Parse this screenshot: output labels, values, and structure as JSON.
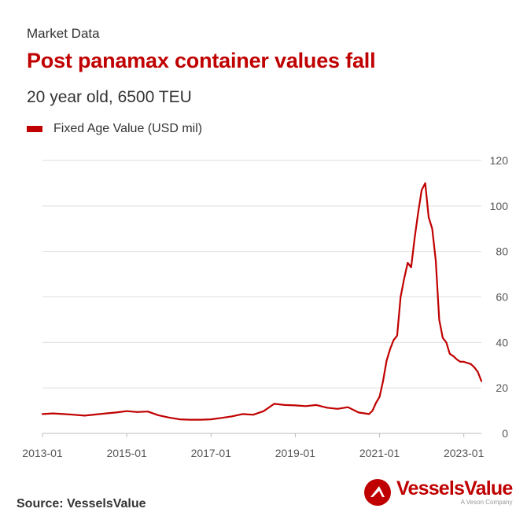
{
  "header": {
    "kicker": "Market Data",
    "title": "Post panamax container values fall",
    "subtitle": "20 year old, 6500 TEU"
  },
  "legend": {
    "label": "Fixed Age Value (USD mil)",
    "color": "#c00000"
  },
  "footer": {
    "source": "Source: VesselsValue",
    "logo_name": "VesselsValue",
    "logo_tag": "A Veson Company"
  },
  "chart_data": {
    "type": "line",
    "title": "Post panamax container values fall",
    "subtitle": "20 year old, 6500 TEU",
    "xlabel": "",
    "ylabel": "",
    "y_axis_side": "right",
    "ylim": [
      0,
      120
    ],
    "yticks": [
      0,
      20,
      40,
      60,
      80,
      100,
      120
    ],
    "xlim": [
      "2013-01",
      "2023-06"
    ],
    "xticks": [
      "2013-01",
      "2015-01",
      "2017-01",
      "2019-01",
      "2021-01",
      "2023-01"
    ],
    "grid": true,
    "legend_position": "top-left",
    "series": [
      {
        "name": "Fixed Age Value (USD mil)",
        "color": "#c00000",
        "points": [
          [
            "2013-01",
            8.5
          ],
          [
            "2013-04",
            8.8
          ],
          [
            "2013-07",
            8.5
          ],
          [
            "2013-10",
            8.2
          ],
          [
            "2014-01",
            7.8
          ],
          [
            "2014-04",
            8.3
          ],
          [
            "2014-07",
            8.8
          ],
          [
            "2014-10",
            9.2
          ],
          [
            "2015-01",
            9.8
          ],
          [
            "2015-04",
            9.4
          ],
          [
            "2015-07",
            9.6
          ],
          [
            "2015-10",
            8.0
          ],
          [
            "2016-01",
            7.0
          ],
          [
            "2016-04",
            6.2
          ],
          [
            "2016-07",
            6.0
          ],
          [
            "2016-10",
            6.0
          ],
          [
            "2017-01",
            6.2
          ],
          [
            "2017-04",
            6.8
          ],
          [
            "2017-07",
            7.5
          ],
          [
            "2017-10",
            8.5
          ],
          [
            "2018-01",
            8.2
          ],
          [
            "2018-04",
            9.8
          ],
          [
            "2018-07",
            13.0
          ],
          [
            "2018-10",
            12.5
          ],
          [
            "2019-01",
            12.3
          ],
          [
            "2019-04",
            12.0
          ],
          [
            "2019-07",
            12.5
          ],
          [
            "2019-10",
            11.3
          ],
          [
            "2020-01",
            10.8
          ],
          [
            "2020-04",
            11.5
          ],
          [
            "2020-07",
            9.2
          ],
          [
            "2020-10",
            8.5
          ],
          [
            "2020-11",
            10.0
          ],
          [
            "2020-12",
            13.5
          ],
          [
            "2021-01",
            16.0
          ],
          [
            "2021-02",
            23.0
          ],
          [
            "2021-03",
            32.0
          ],
          [
            "2021-04",
            37.0
          ],
          [
            "2021-05",
            41.0
          ],
          [
            "2021-06",
            43.0
          ],
          [
            "2021-07",
            60.0
          ],
          [
            "2021-08",
            68.0
          ],
          [
            "2021-09",
            75.0
          ],
          [
            "2021-10",
            73.0
          ],
          [
            "2021-11",
            86.0
          ],
          [
            "2021-12",
            97.0
          ],
          [
            "2022-01",
            107.0
          ],
          [
            "2022-02",
            110.0
          ],
          [
            "2022-03",
            95.0
          ],
          [
            "2022-04",
            90.0
          ],
          [
            "2022-05",
            76.0
          ],
          [
            "2022-06",
            50.0
          ],
          [
            "2022-07",
            42.0
          ],
          [
            "2022-08",
            40.0
          ],
          [
            "2022-09",
            35.0
          ],
          [
            "2022-10",
            34.0
          ],
          [
            "2022-11",
            32.5
          ],
          [
            "2022-12",
            31.5
          ],
          [
            "2023-01",
            31.5
          ],
          [
            "2023-02",
            31.0
          ],
          [
            "2023-03",
            30.5
          ],
          [
            "2023-04",
            29.0
          ],
          [
            "2023-05",
            27.0
          ],
          [
            "2023-06",
            23.0
          ]
        ]
      }
    ]
  }
}
